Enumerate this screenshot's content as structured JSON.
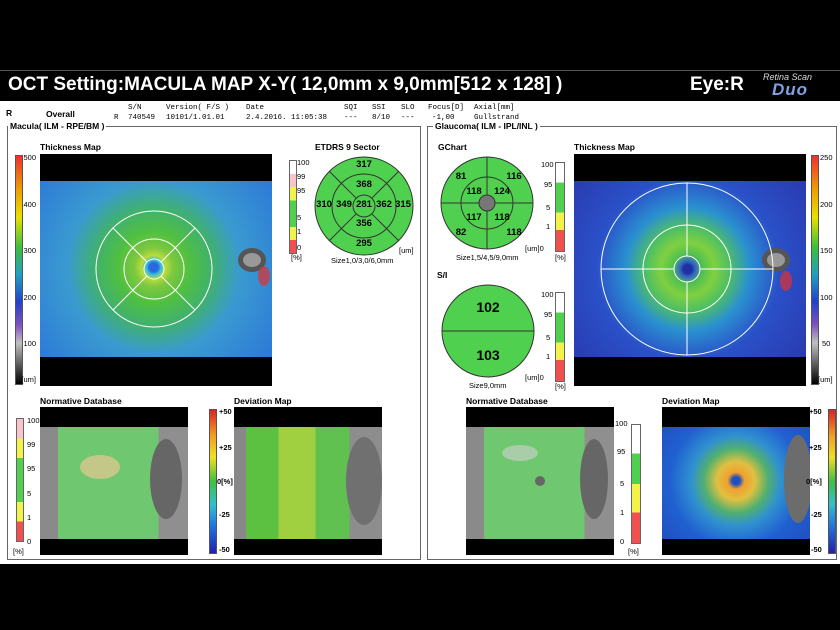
{
  "header": {
    "title": "OCT Setting:MACULA MAP X-Y( 12,0mm x 9,0mm[512 x 128] )",
    "eye": "Eye:R",
    "brand_top": "Retina Scan",
    "brand_name": "Duo"
  },
  "info": {
    "eye_letter": "R",
    "overall": "Overall",
    "eye_letter_small": "R",
    "col_sn": "S/N",
    "val_sn": "740549",
    "col_version": "Version( F/S )",
    "val_version": "10101/1.01.01",
    "col_date": "Date",
    "val_date": "2.4.2016. 11:05:38",
    "col_sqi": "SQI",
    "val_sqi": "---",
    "col_ssi": "SSI",
    "val_ssi": "8/10",
    "col_slo": "SLO",
    "val_slo": "---",
    "col_focus": "Focus[D]",
    "val_focus": "-1,00",
    "col_axial": "Axial[mm]",
    "val_axial": "Gullstrand"
  },
  "macula": {
    "panel_title": "Macula( ILM - RPE/BM )",
    "thickness_title": "Thickness Map",
    "thickness_scale": [
      "500",
      "400",
      "300",
      "200",
      "100",
      "[um]"
    ],
    "etdrs_title": "ETDRS 9 Sector",
    "etdrs_scale": [
      "100",
      "99",
      "95",
      "5",
      "1",
      "0",
      "[%]"
    ],
    "etdrs_values": {
      "outer_superior": "317",
      "inner_superior": "368",
      "outer_temporal": "310",
      "inner_temporal": "349",
      "center": "281",
      "inner_nasal": "362",
      "outer_nasal": "315",
      "inner_inferior": "356",
      "outer_inferior": "295"
    },
    "etdrs_unit": "[um]",
    "etdrs_size": "Size1,0/3,0/6,0mm",
    "normdb_title": "Normative Database",
    "normdb_scale": [
      "100",
      "99",
      "95",
      "5",
      "1",
      "0",
      "[%]"
    ],
    "deviation_title": "Deviation Map",
    "deviation_scale": [
      "+50",
      "+25",
      "0[%]",
      "-25",
      "-50"
    ]
  },
  "glaucoma": {
    "panel_title": "Glaucoma( ILM - IPL/INL )",
    "gchart_title": "GChart",
    "gchart_values": {
      "outer_top_left": "81",
      "outer_top_right": "116",
      "inner_top_left": "118",
      "inner_top_right": "124",
      "inner_bottom_left": "117",
      "inner_bottom_right": "118",
      "outer_bottom_left": "82",
      "outer_bottom_right": "118"
    },
    "gchart_scale": [
      "100",
      "95",
      "5",
      "1",
      "[um]0",
      "[%]"
    ],
    "gchart_size": "Size1,5/4,5/9,0mm",
    "si_title": "S/I",
    "si_superior": "102",
    "si_inferior": "103",
    "si_scale": [
      "100",
      "95",
      "5",
      "1",
      "[um]0",
      "[%]"
    ],
    "si_size": "Size9,0mm",
    "thickness_title": "Thickness Map",
    "thickness_scale": [
      "250",
      "200",
      "150",
      "100",
      "50",
      "[um]"
    ],
    "normdb_title": "Normative Database",
    "normdb_scale": [
      "100",
      "95",
      "5",
      "1",
      "0",
      "[%]"
    ],
    "deviation_title": "Deviation Map",
    "deviation_scale": [
      "+50",
      "+25",
      "0[%]",
      "-25",
      "-50"
    ]
  },
  "colors": {
    "normal_green": "#4fd14f",
    "borderline_yellow": "#f2f24a",
    "outside_red": "#f05050",
    "superior_pink": "#f7c4cc",
    "brand_blue": "#7fa3e0"
  }
}
